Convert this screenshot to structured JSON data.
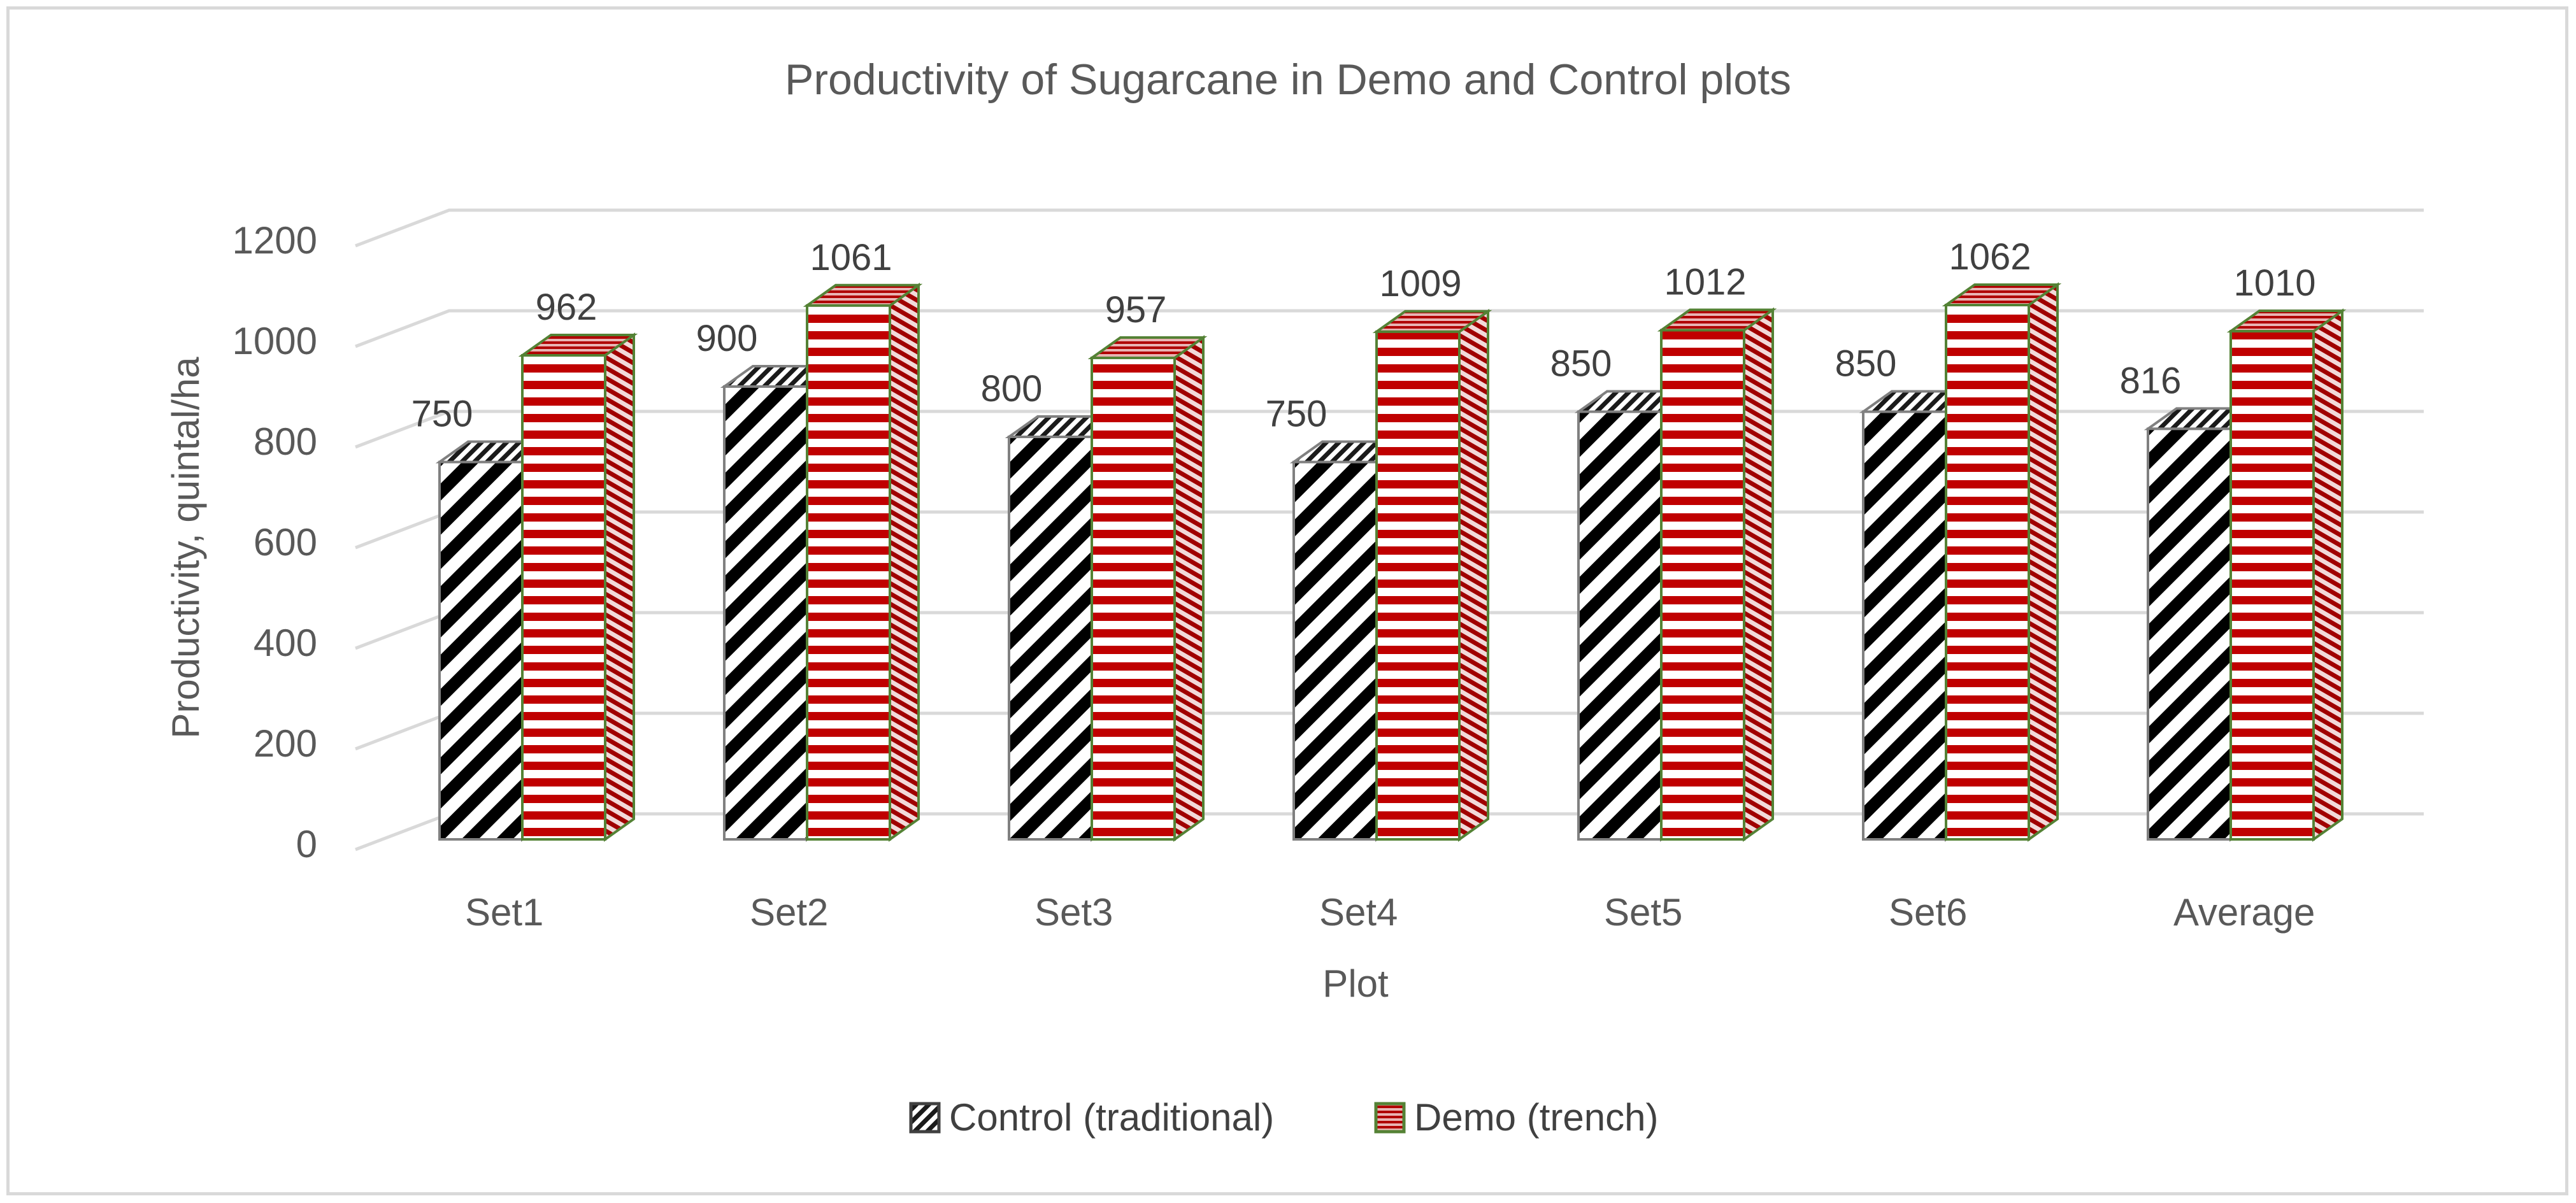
{
  "chart_data": {
    "type": "bar",
    "title": "Productivity of Sugarcane in Demo and Control plots",
    "xlabel": "Plot",
    "ylabel": "Productivity, quintal/ha",
    "categories": [
      "Set1",
      "Set2",
      "Set3",
      "Set4",
      "Set5",
      "Set6",
      "Average"
    ],
    "series": [
      {
        "name": "Control (traditional)",
        "values": [
          750,
          900,
          800,
          750,
          850,
          850,
          816
        ],
        "pattern": "diagonal-stripes",
        "color": "#000000"
      },
      {
        "name": "Demo (trench)",
        "values": [
          962,
          1061,
          957,
          1009,
          1012,
          1062,
          1010
        ],
        "pattern": "horizontal-stripes",
        "color": "#c00000",
        "border_color": "#548235"
      }
    ],
    "data_labels": [
      [
        "750",
        "900",
        "800",
        "750",
        "850",
        "850",
        "816"
      ],
      [
        "962",
        "1061",
        "957",
        "1009",
        "1012",
        "1062",
        "1010"
      ]
    ],
    "ylim": [
      0,
      1200
    ],
    "yticks": [
      0,
      200,
      400,
      600,
      800,
      1000,
      1200
    ],
    "ytick_labels": [
      "0",
      "200",
      "400",
      "600",
      "800",
      "1000",
      "1200"
    ],
    "grid": true,
    "legend": "bottom",
    "style": "3d-clustered-column"
  }
}
